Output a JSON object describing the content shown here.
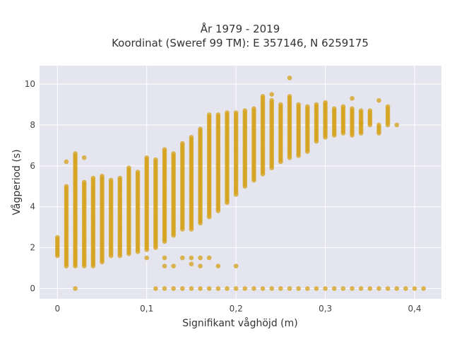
{
  "chart_data": {
    "type": "scatter",
    "title": "År 1979 - 2019",
    "subtitle": "Koordinat (Sweref 99 TM): E 357146, N 6259175",
    "xlabel": "Signifikant våghöjd (m)",
    "ylabel": "Vågperiod (s)",
    "xlim": [
      -0.02,
      0.43
    ],
    "ylim": [
      -0.5,
      10.9
    ],
    "x_ticks": [
      0,
      0.1,
      0.2,
      0.3,
      0.4
    ],
    "x_tick_labels": [
      "0",
      "0,1",
      "0,2",
      "0,3",
      "0,4"
    ],
    "y_ticks": [
      0,
      2,
      4,
      6,
      8,
      10
    ],
    "y_tick_labels": [
      "0",
      "2",
      "4",
      "6",
      "8",
      "10"
    ],
    "grid": true,
    "legend": "none",
    "marker_color": "#d4a017",
    "plot_background": "#e5e5ef",
    "columns": [
      {
        "x": 0.0,
        "ymin": 1.6,
        "ymax": 2.5
      },
      {
        "x": 0.01,
        "ymin": 1.1,
        "ymax": 5.0,
        "extra": [
          6.2
        ]
      },
      {
        "x": 0.02,
        "ymin": 1.1,
        "ymax": 6.5,
        "extra": [
          0.0,
          6.6
        ]
      },
      {
        "x": 0.03,
        "ymin": 1.1,
        "ymax": 5.2,
        "extra": [
          6.4
        ]
      },
      {
        "x": 0.04,
        "ymin": 1.1,
        "ymax": 5.4
      },
      {
        "x": 0.05,
        "ymin": 1.3,
        "ymax": 5.5
      },
      {
        "x": 0.06,
        "ymin": 1.6,
        "ymax": 5.3
      },
      {
        "x": 0.07,
        "ymin": 1.6,
        "ymax": 5.4
      },
      {
        "x": 0.08,
        "ymin": 1.7,
        "ymax": 5.9
      },
      {
        "x": 0.09,
        "ymin": 1.8,
        "ymax": 5.7
      },
      {
        "x": 0.1,
        "ymin": 1.9,
        "ymax": 6.4,
        "extra": [
          1.5
        ]
      },
      {
        "x": 0.11,
        "ymin": 2.0,
        "ymax": 6.3,
        "extra": [
          0.0
        ]
      },
      {
        "x": 0.12,
        "ymin": 2.3,
        "ymax": 6.8,
        "extra": [
          0.0,
          1.1,
          1.5
        ]
      },
      {
        "x": 0.13,
        "ymin": 2.6,
        "ymax": 6.6,
        "extra": [
          0.0,
          1.1
        ]
      },
      {
        "x": 0.14,
        "ymin": 2.9,
        "ymax": 7.1,
        "extra": [
          0.0,
          1.5
        ]
      },
      {
        "x": 0.15,
        "ymin": 2.9,
        "ymax": 7.4,
        "extra": [
          0.0,
          1.2,
          1.5
        ]
      },
      {
        "x": 0.16,
        "ymin": 3.2,
        "ymax": 7.8,
        "extra": [
          0.0,
          1.1,
          1.5
        ]
      },
      {
        "x": 0.17,
        "ymin": 3.5,
        "ymax": 8.5,
        "extra": [
          0.0,
          1.5
        ]
      },
      {
        "x": 0.18,
        "ymin": 3.8,
        "ymax": 8.5,
        "extra": [
          0.0,
          1.1
        ]
      },
      {
        "x": 0.19,
        "ymin": 4.2,
        "ymax": 8.6,
        "extra": [
          0.0
        ]
      },
      {
        "x": 0.2,
        "ymin": 4.6,
        "ymax": 8.6,
        "extra": [
          0.0,
          1.1
        ]
      },
      {
        "x": 0.21,
        "ymin": 5.0,
        "ymax": 8.7,
        "extra": [
          0.0
        ]
      },
      {
        "x": 0.22,
        "ymin": 5.3,
        "ymax": 8.8,
        "extra": [
          0.0
        ]
      },
      {
        "x": 0.23,
        "ymin": 5.6,
        "ymax": 9.4,
        "extra": [
          0.0
        ]
      },
      {
        "x": 0.24,
        "ymin": 5.9,
        "ymax": 9.2,
        "extra": [
          0.0,
          9.5
        ]
      },
      {
        "x": 0.25,
        "ymin": 6.2,
        "ymax": 9.0,
        "extra": [
          0.0
        ]
      },
      {
        "x": 0.26,
        "ymin": 6.4,
        "ymax": 9.4,
        "extra": [
          0.0,
          10.3
        ]
      },
      {
        "x": 0.27,
        "ymin": 6.5,
        "ymax": 9.0,
        "extra": [
          0.0
        ]
      },
      {
        "x": 0.28,
        "ymin": 6.7,
        "ymax": 8.9,
        "extra": [
          0.0
        ]
      },
      {
        "x": 0.29,
        "ymin": 7.2,
        "ymax": 9.0,
        "extra": [
          0.0
        ]
      },
      {
        "x": 0.3,
        "ymin": 7.4,
        "ymax": 9.1,
        "extra": [
          0.0
        ]
      },
      {
        "x": 0.31,
        "ymin": 7.5,
        "ymax": 8.8,
        "extra": [
          0.0
        ]
      },
      {
        "x": 0.32,
        "ymin": 7.6,
        "ymax": 8.9,
        "extra": [
          0.0
        ]
      },
      {
        "x": 0.33,
        "ymin": 7.5,
        "ymax": 8.8,
        "extra": [
          0.0,
          9.3
        ]
      },
      {
        "x": 0.34,
        "ymin": 7.6,
        "ymax": 8.7,
        "extra": [
          0.0,
          8.1
        ]
      },
      {
        "x": 0.35,
        "ymin": 8.0,
        "ymax": 8.7,
        "extra": [
          0.0
        ]
      },
      {
        "x": 0.36,
        "ymin": 7.6,
        "ymax": 8.0,
        "extra": [
          0.0,
          9.2
        ]
      },
      {
        "x": 0.37,
        "ymin": 8.0,
        "ymax": 8.9,
        "extra": [
          0.0
        ]
      },
      {
        "x": 0.38,
        "ymin": 8.0,
        "ymax": 8.0,
        "extra": [
          0.0
        ]
      },
      {
        "x": 0.39,
        "ymin": 0.0,
        "ymax": 0.0
      },
      {
        "x": 0.4,
        "ymin": 0.0,
        "ymax": 0.0
      },
      {
        "x": 0.41,
        "ymin": 0.0,
        "ymax": 0.0
      }
    ]
  }
}
